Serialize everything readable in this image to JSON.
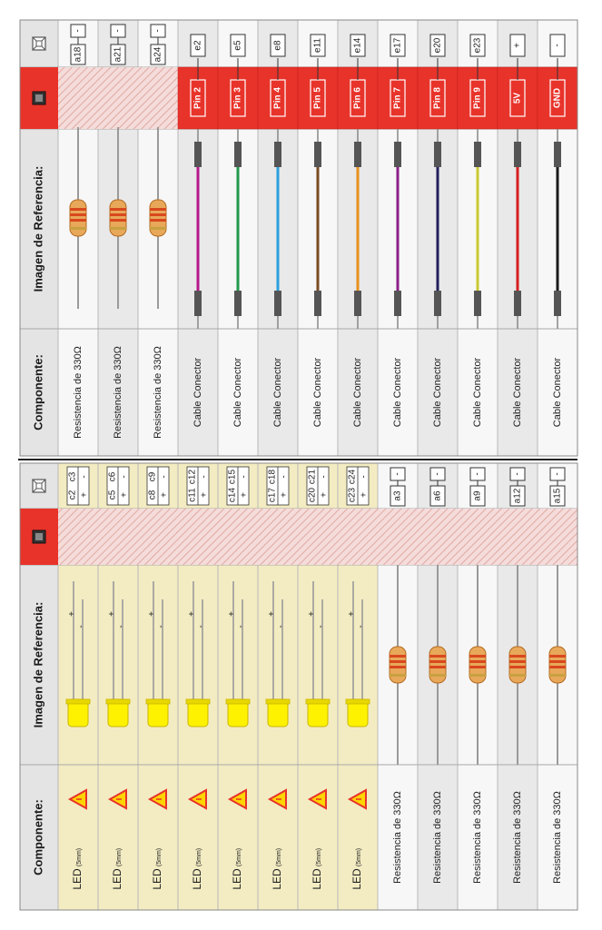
{
  "headers": {
    "component": "Componente:",
    "reference_image": "Imagen de Referencia:"
  },
  "colors": {
    "led_bg": "#f3ecc2",
    "alt_row": "#e9e9e9",
    "header_bg": "#e4e4e4",
    "pin_red": "#e8332a",
    "hatch": "#f2d6d4",
    "led_yellow": "#fff200"
  },
  "left_rows": [
    {
      "component": "LED",
      "size": "(5mm)",
      "type": "led",
      "holes": [
        "c2",
        "c3"
      ],
      "polarity": [
        "+",
        "-"
      ]
    },
    {
      "component": "LED",
      "size": "(5mm)",
      "type": "led",
      "holes": [
        "c5",
        "c6"
      ],
      "polarity": [
        "+",
        "-"
      ]
    },
    {
      "component": "LED",
      "size": "(5mm)",
      "type": "led",
      "holes": [
        "c8",
        "c9"
      ],
      "polarity": [
        "+",
        "-"
      ]
    },
    {
      "component": "LED",
      "size": "(5mm)",
      "type": "led",
      "holes": [
        "c11",
        "c12"
      ],
      "polarity": [
        "+",
        "-"
      ]
    },
    {
      "component": "LED",
      "size": "(5mm)",
      "type": "led",
      "holes": [
        "c14",
        "c15"
      ],
      "polarity": [
        "+",
        "-"
      ]
    },
    {
      "component": "LED",
      "size": "(5mm)",
      "type": "led",
      "holes": [
        "c17",
        "c18"
      ],
      "polarity": [
        "+",
        "-"
      ]
    },
    {
      "component": "LED",
      "size": "(5mm)",
      "type": "led",
      "holes": [
        "c20",
        "c21"
      ],
      "polarity": [
        "+",
        "-"
      ]
    },
    {
      "component": "LED",
      "size": "(5mm)",
      "type": "led",
      "holes": [
        "c23",
        "c24"
      ],
      "polarity": [
        "+",
        "-"
      ]
    },
    {
      "component": "Resistencia de 330Ω",
      "type": "resistor",
      "holes": [
        "a3",
        "-"
      ]
    },
    {
      "component": "Resistencia de 330Ω",
      "type": "resistor",
      "holes": [
        "a6",
        "-"
      ]
    },
    {
      "component": "Resistencia de 330Ω",
      "type": "resistor",
      "holes": [
        "a9",
        "-"
      ]
    },
    {
      "component": "Resistencia de 330Ω",
      "type": "resistor",
      "holes": [
        "a12",
        "-"
      ]
    },
    {
      "component": "Resistencia de 330Ω",
      "type": "resistor",
      "holes": [
        "a15",
        "-"
      ]
    }
  ],
  "right_rows": [
    {
      "component": "Resistencia de 330Ω",
      "type": "resistor",
      "holes": [
        "a18",
        "-"
      ]
    },
    {
      "component": "Resistencia de 330Ω",
      "type": "resistor",
      "holes": [
        "a21",
        "-"
      ]
    },
    {
      "component": "Resistencia de 330Ω",
      "type": "resistor",
      "holes": [
        "a24",
        "-"
      ]
    },
    {
      "component": "Cable Conector",
      "type": "wire",
      "wire_color": "#b5198a",
      "pin": "Pin 2",
      "hole": "e2"
    },
    {
      "component": "Cable Conector",
      "type": "wire",
      "wire_color": "#1f9a4a",
      "pin": "Pin 3",
      "hole": "e5"
    },
    {
      "component": "Cable Conector",
      "type": "wire",
      "wire_color": "#2aa0dc",
      "pin": "Pin 4",
      "hole": "e8"
    },
    {
      "component": "Cable Conector",
      "type": "wire",
      "wire_color": "#7a4a22",
      "pin": "Pin 5",
      "hole": "e11"
    },
    {
      "component": "Cable Conector",
      "type": "wire",
      "wire_color": "#e8901e",
      "pin": "Pin 6",
      "hole": "e14"
    },
    {
      "component": "Cable Conector",
      "type": "wire",
      "wire_color": "#8a1f8a",
      "pin": "Pin 7",
      "hole": "e17"
    },
    {
      "component": "Cable Conector",
      "type": "wire",
      "wire_color": "#23205e",
      "pin": "Pin 8",
      "hole": "e20"
    },
    {
      "component": "Cable Conector",
      "type": "wire",
      "wire_color": "#c9c832",
      "pin": "Pin 9",
      "hole": "e23"
    },
    {
      "component": "Cable Conector",
      "type": "wire",
      "wire_color": "#d62020",
      "pin": "5V",
      "hole": "+"
    },
    {
      "component": "Cable Conector",
      "type": "wire",
      "wire_color": "#1a1a1a",
      "pin": "GND",
      "hole": "-"
    }
  ]
}
